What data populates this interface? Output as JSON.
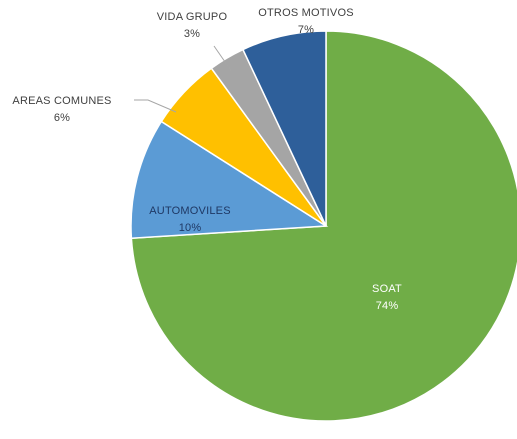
{
  "chart_data": {
    "type": "pie",
    "title": "",
    "slices": [
      {
        "label": "SOAT",
        "value": 74,
        "value_label": "74%",
        "color": "#70ad47",
        "label_color": "#ffffff"
      },
      {
        "label": "AUTOMOVILES",
        "value": 10,
        "value_label": "10%",
        "color": "#5b9bd5",
        "label_color": "#1f3864"
      },
      {
        "label": "AREAS COMUNES",
        "value": 6,
        "value_label": "6%",
        "color": "#ffc000",
        "label_color": "#404040"
      },
      {
        "label": "VIDA GRUPO",
        "value": 3,
        "value_label": "3%",
        "color": "#a5a5a5",
        "label_color": "#404040"
      },
      {
        "label": "OTROS MOTIVOS",
        "value": 7,
        "value_label": "7%",
        "color": "#2e5f9a",
        "label_color": "#404040"
      }
    ],
    "start_angle_deg": 0,
    "direction": "clockwise",
    "legend": "none"
  }
}
